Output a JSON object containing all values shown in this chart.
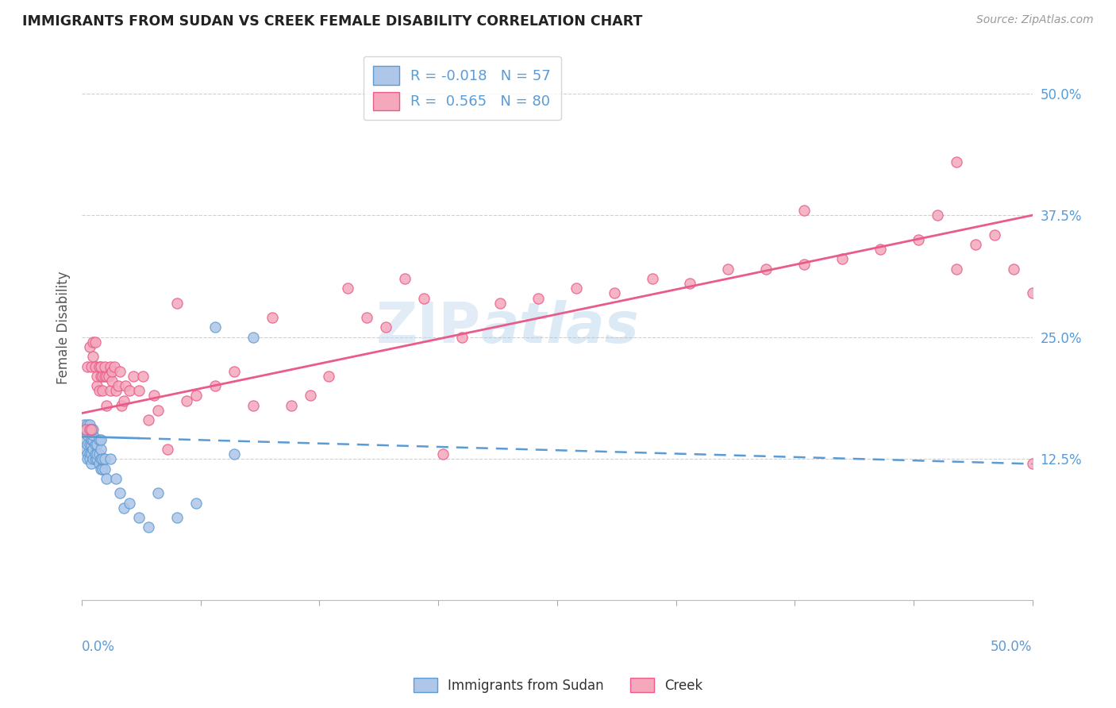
{
  "title": "IMMIGRANTS FROM SUDAN VS CREEK FEMALE DISABILITY CORRELATION CHART",
  "source": "Source: ZipAtlas.com",
  "ylabel": "Female Disability",
  "ytick_labels": [
    "12.5%",
    "25.0%",
    "37.5%",
    "50.0%"
  ],
  "ytick_values": [
    0.125,
    0.25,
    0.375,
    0.5
  ],
  "xlim": [
    0.0,
    0.5
  ],
  "ylim": [
    -0.02,
    0.54
  ],
  "color_sudan": "#aec6e8",
  "color_creek": "#f5a8bb",
  "color_sudan_line": "#5b9bd5",
  "color_creek_line": "#e85b8a",
  "color_axis_labels": "#5b9bd5",
  "sudan_r": -0.018,
  "sudan_n": 57,
  "creek_r": 0.565,
  "creek_n": 80,
  "sudan_line_start_y": 0.148,
  "sudan_line_end_y": 0.12,
  "creek_line_start_y": 0.172,
  "creek_line_end_y": 0.375,
  "sudan_points_x": [
    0.001,
    0.001,
    0.002,
    0.002,
    0.002,
    0.003,
    0.003,
    0.003,
    0.003,
    0.003,
    0.004,
    0.004,
    0.004,
    0.004,
    0.004,
    0.005,
    0.005,
    0.005,
    0.005,
    0.005,
    0.006,
    0.006,
    0.006,
    0.006,
    0.006,
    0.007,
    0.007,
    0.007,
    0.007,
    0.008,
    0.008,
    0.008,
    0.009,
    0.009,
    0.009,
    0.01,
    0.01,
    0.01,
    0.01,
    0.011,
    0.011,
    0.012,
    0.012,
    0.013,
    0.015,
    0.018,
    0.02,
    0.022,
    0.025,
    0.03,
    0.035,
    0.04,
    0.05,
    0.06,
    0.07,
    0.08,
    0.09
  ],
  "sudan_points_y": [
    0.155,
    0.16,
    0.135,
    0.145,
    0.155,
    0.14,
    0.15,
    0.13,
    0.16,
    0.125,
    0.13,
    0.14,
    0.155,
    0.125,
    0.16,
    0.13,
    0.14,
    0.12,
    0.145,
    0.155,
    0.125,
    0.135,
    0.145,
    0.15,
    0.155,
    0.125,
    0.13,
    0.14,
    0.22,
    0.125,
    0.13,
    0.14,
    0.12,
    0.13,
    0.145,
    0.115,
    0.125,
    0.135,
    0.145,
    0.115,
    0.125,
    0.115,
    0.125,
    0.105,
    0.125,
    0.105,
    0.09,
    0.075,
    0.08,
    0.065,
    0.055,
    0.09,
    0.065,
    0.08,
    0.26,
    0.13,
    0.25
  ],
  "creek_points_x": [
    0.002,
    0.003,
    0.004,
    0.004,
    0.005,
    0.005,
    0.006,
    0.006,
    0.007,
    0.007,
    0.008,
    0.008,
    0.009,
    0.009,
    0.01,
    0.01,
    0.011,
    0.011,
    0.012,
    0.012,
    0.013,
    0.013,
    0.014,
    0.015,
    0.015,
    0.016,
    0.016,
    0.017,
    0.018,
    0.019,
    0.02,
    0.021,
    0.022,
    0.023,
    0.025,
    0.027,
    0.03,
    0.032,
    0.035,
    0.038,
    0.04,
    0.045,
    0.05,
    0.055,
    0.06,
    0.07,
    0.08,
    0.09,
    0.1,
    0.11,
    0.12,
    0.13,
    0.14,
    0.15,
    0.16,
    0.17,
    0.18,
    0.19,
    0.2,
    0.22,
    0.24,
    0.26,
    0.28,
    0.3,
    0.32,
    0.34,
    0.36,
    0.38,
    0.4,
    0.42,
    0.44,
    0.45,
    0.46,
    0.47,
    0.48,
    0.49,
    0.5,
    0.38,
    0.46,
    0.5
  ],
  "creek_points_y": [
    0.155,
    0.22,
    0.155,
    0.24,
    0.22,
    0.155,
    0.23,
    0.245,
    0.22,
    0.245,
    0.2,
    0.21,
    0.22,
    0.195,
    0.21,
    0.22,
    0.21,
    0.195,
    0.21,
    0.22,
    0.18,
    0.21,
    0.21,
    0.195,
    0.22,
    0.205,
    0.215,
    0.22,
    0.195,
    0.2,
    0.215,
    0.18,
    0.185,
    0.2,
    0.195,
    0.21,
    0.195,
    0.21,
    0.165,
    0.19,
    0.175,
    0.135,
    0.285,
    0.185,
    0.19,
    0.2,
    0.215,
    0.18,
    0.27,
    0.18,
    0.19,
    0.21,
    0.3,
    0.27,
    0.26,
    0.31,
    0.29,
    0.13,
    0.25,
    0.285,
    0.29,
    0.3,
    0.295,
    0.31,
    0.305,
    0.32,
    0.32,
    0.325,
    0.33,
    0.34,
    0.35,
    0.375,
    0.43,
    0.345,
    0.355,
    0.32,
    0.295,
    0.38,
    0.32,
    0.12
  ]
}
